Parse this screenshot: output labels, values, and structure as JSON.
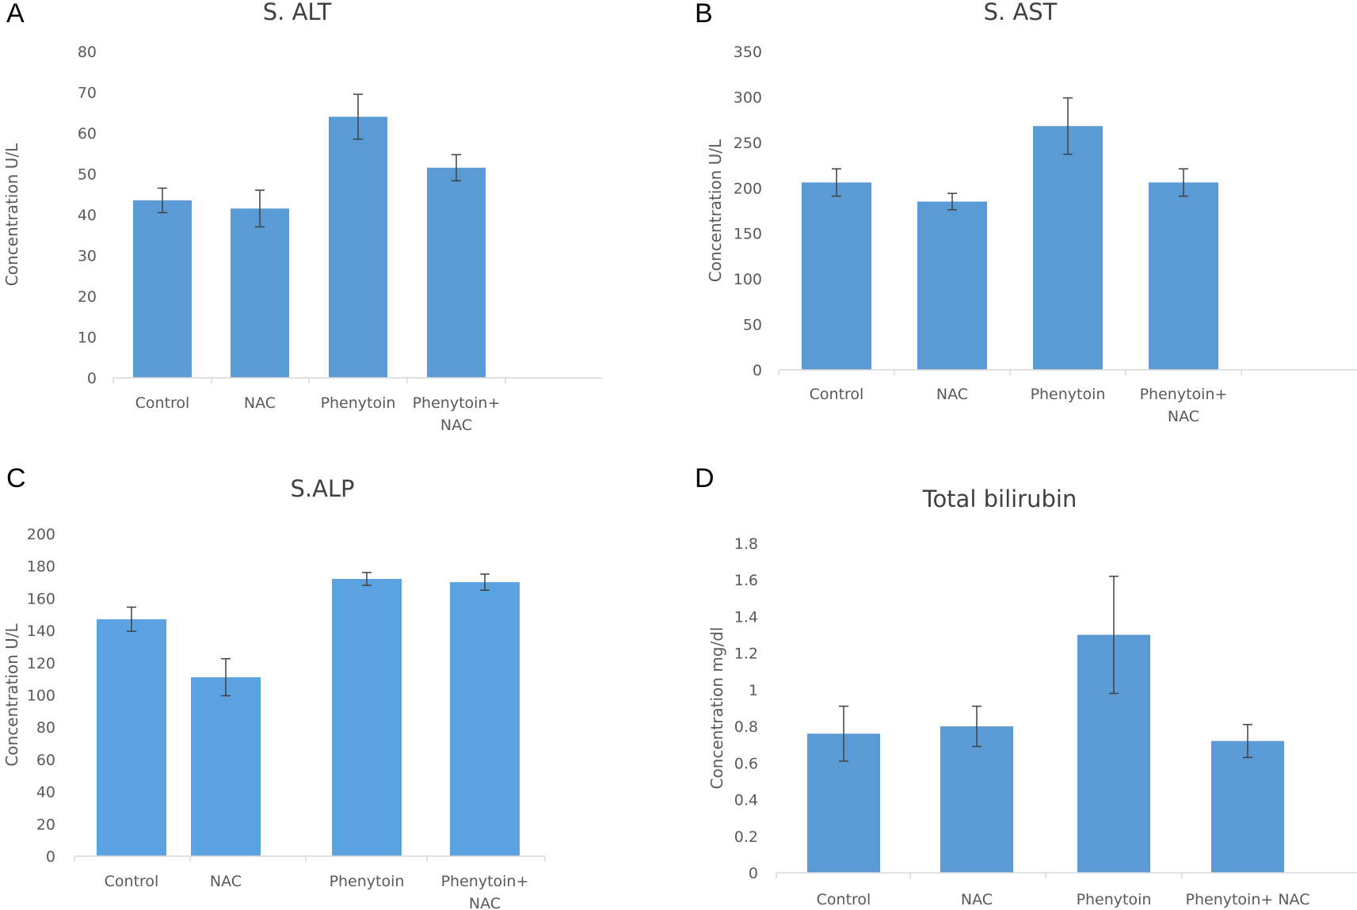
{
  "chart_data": [
    {
      "panel": "A",
      "type": "bar",
      "title": "S. ALT",
      "ylabel": "Concentration U/L",
      "xlabel": "",
      "ylim": [
        0,
        80
      ],
      "yticks": [
        0,
        10,
        20,
        30,
        40,
        50,
        60,
        70,
        80
      ],
      "categories": [
        [
          "Control"
        ],
        [
          "NAC"
        ],
        [
          "Phenytoin"
        ],
        [
          "Phenytoin+",
          "NAC"
        ]
      ],
      "values": [
        43.5,
        41.5,
        64,
        51.5
      ],
      "errors": [
        3,
        4.5,
        5.5,
        3.2
      ],
      "color": "#5b9bd5",
      "grid": false
    },
    {
      "panel": "B",
      "type": "bar",
      "title": "S. AST",
      "ylabel": "Concentration U/L",
      "xlabel": "",
      "ylim": [
        0,
        350
      ],
      "yticks": [
        0,
        50,
        100,
        150,
        200,
        250,
        300,
        350
      ],
      "categories": [
        [
          "Control"
        ],
        [
          "NAC"
        ],
        [
          "Phenytoin"
        ],
        [
          "Phenytoin+",
          "NAC"
        ]
      ],
      "values": [
        206,
        185,
        268,
        206
      ],
      "errors": [
        15,
        9,
        31,
        15
      ],
      "color": "#5b9bd5",
      "grid": false
    },
    {
      "panel": "C",
      "type": "bar",
      "title": "S.ALP",
      "ylabel": "Concentration U/L",
      "xlabel": "",
      "ylim": [
        0,
        200
      ],
      "yticks": [
        0,
        20,
        40,
        60,
        80,
        100,
        120,
        140,
        160,
        180,
        200
      ],
      "categories": [
        [
          "Control"
        ],
        [
          "NAC"
        ],
        [
          "Phenytoin"
        ],
        [
          "Phenytoin+",
          "NAC"
        ]
      ],
      "values": [
        147,
        111,
        172,
        170
      ],
      "errors": [
        7.5,
        11.5,
        4,
        5
      ],
      "color": "#5ba3e0",
      "grid": false
    },
    {
      "panel": "D",
      "type": "bar",
      "title": "Total bilirubin",
      "ylabel": "Concentration mg/dl",
      "xlabel": "",
      "ylim": [
        0,
        1.8
      ],
      "yticks": [
        "0",
        "0.2",
        "0.4",
        "0.6",
        "0.8",
        "1",
        "1.2",
        "1.4",
        "1.6",
        "1.8"
      ],
      "categories": [
        [
          "Control"
        ],
        [
          "NAC"
        ],
        [
          "Phenytoin"
        ],
        [
          "Phenytoin+ NAC"
        ]
      ],
      "values": [
        0.76,
        0.8,
        1.3,
        0.72
      ],
      "errors": [
        0.15,
        0.11,
        0.32,
        0.09
      ],
      "color": "#5b9bd5",
      "grid": false
    }
  ]
}
